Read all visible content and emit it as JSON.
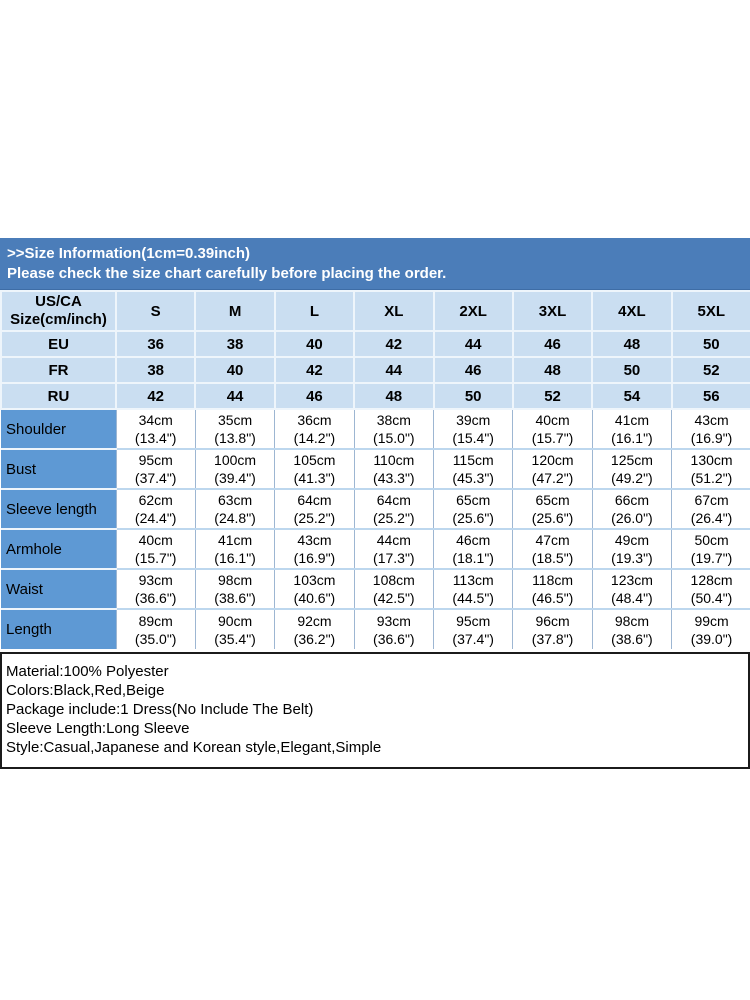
{
  "banner": {
    "line1": ">>Size Information(1cm=0.39inch)",
    "line2": "Please check the size chart carefully before placing the order.",
    "bg_color": "#4b7db9",
    "text_color": "#ffffff"
  },
  "size_table": {
    "corner_header": {
      "line1": "US/CA",
      "line2": "Size(cm/inch)"
    },
    "size_columns": [
      "S",
      "M",
      "L",
      "XL",
      "2XL",
      "3XL",
      "4XL",
      "5XL"
    ],
    "region_rows": [
      {
        "label": "EU",
        "values": [
          "36",
          "38",
          "40",
          "42",
          "44",
          "46",
          "48",
          "50"
        ]
      },
      {
        "label": "FR",
        "values": [
          "38",
          "40",
          "42",
          "44",
          "46",
          "48",
          "50",
          "52"
        ]
      },
      {
        "label": "RU",
        "values": [
          "42",
          "44",
          "46",
          "48",
          "50",
          "52",
          "54",
          "56"
        ]
      }
    ],
    "measurement_rows": [
      {
        "label": "Shoulder",
        "cells": [
          {
            "cm": "34cm",
            "in": "(13.4\")"
          },
          {
            "cm": "35cm",
            "in": "(13.8\")"
          },
          {
            "cm": "36cm",
            "in": "(14.2\")"
          },
          {
            "cm": "38cm",
            "in": "(15.0\")"
          },
          {
            "cm": "39cm",
            "in": "(15.4\")"
          },
          {
            "cm": "40cm",
            "in": "(15.7\")"
          },
          {
            "cm": "41cm",
            "in": "(16.1\")"
          },
          {
            "cm": "43cm",
            "in": "(16.9\")"
          }
        ]
      },
      {
        "label": "Bust",
        "cells": [
          {
            "cm": "95cm",
            "in": "(37.4\")"
          },
          {
            "cm": "100cm",
            "in": "(39.4\")"
          },
          {
            "cm": "105cm",
            "in": "(41.3\")"
          },
          {
            "cm": "110cm",
            "in": "(43.3\")"
          },
          {
            "cm": "115cm",
            "in": "(45.3\")"
          },
          {
            "cm": "120cm",
            "in": "(47.2\")"
          },
          {
            "cm": "125cm",
            "in": "(49.2\")"
          },
          {
            "cm": "130cm",
            "in": "(51.2\")"
          }
        ]
      },
      {
        "label": "Sleeve length",
        "cells": [
          {
            "cm": "62cm",
            "in": "(24.4\")"
          },
          {
            "cm": "63cm",
            "in": "(24.8\")"
          },
          {
            "cm": "64cm",
            "in": "(25.2\")"
          },
          {
            "cm": "64cm",
            "in": "(25.2\")"
          },
          {
            "cm": "65cm",
            "in": "(25.6\")"
          },
          {
            "cm": "65cm",
            "in": "(25.6\")"
          },
          {
            "cm": "66cm",
            "in": "(26.0\")"
          },
          {
            "cm": "67cm",
            "in": "(26.4\")"
          }
        ]
      },
      {
        "label": "Armhole",
        "cells": [
          {
            "cm": "40cm",
            "in": "(15.7\")"
          },
          {
            "cm": "41cm",
            "in": "(16.1\")"
          },
          {
            "cm": "43cm",
            "in": "(16.9\")"
          },
          {
            "cm": "44cm",
            "in": "(17.3\")"
          },
          {
            "cm": "46cm",
            "in": "(18.1\")"
          },
          {
            "cm": "47cm",
            "in": "(18.5\")"
          },
          {
            "cm": "49cm",
            "in": "(19.3\")"
          },
          {
            "cm": "50cm",
            "in": "(19.7\")"
          }
        ]
      },
      {
        "label": "Waist",
        "cells": [
          {
            "cm": "93cm",
            "in": "(36.6\")"
          },
          {
            "cm": "98cm",
            "in": "(38.6\")"
          },
          {
            "cm": "103cm",
            "in": "(40.6\")"
          },
          {
            "cm": "108cm",
            "in": "(42.5\")"
          },
          {
            "cm": "113cm",
            "in": "(44.5\")"
          },
          {
            "cm": "118cm",
            "in": "(46.5\")"
          },
          {
            "cm": "123cm",
            "in": "(48.4\")"
          },
          {
            "cm": "128cm",
            "in": "(50.4\")"
          }
        ]
      },
      {
        "label": "Length",
        "cells": [
          {
            "cm": "89cm",
            "in": "(35.0\")"
          },
          {
            "cm": "90cm",
            "in": "(35.4\")"
          },
          {
            "cm": "92cm",
            "in": "(36.2\")"
          },
          {
            "cm": "93cm",
            "in": "(36.6\")"
          },
          {
            "cm": "95cm",
            "in": "(37.4\")"
          },
          {
            "cm": "96cm",
            "in": "(37.8\")"
          },
          {
            "cm": "98cm",
            "in": "(38.6\")"
          },
          {
            "cm": "99cm",
            "in": "(39.0\")"
          }
        ]
      }
    ],
    "colors": {
      "header_bg": "#cadef1",
      "label_bg": "#5e99d4",
      "data_bg": "#ffffff",
      "grid_light": "#eef5fb",
      "grid_blue": "#bdd7ee",
      "grid_vertical": "#9db6d2"
    }
  },
  "product_info": {
    "lines": [
      "Material:100% Polyester",
      "Colors:Black,Red,Beige",
      "Package include:1 Dress(No Include The Belt)",
      "Sleeve Length:Long Sleeve",
      "Style:Casual,Japanese and Korean style,Elegant,Simple"
    ]
  }
}
